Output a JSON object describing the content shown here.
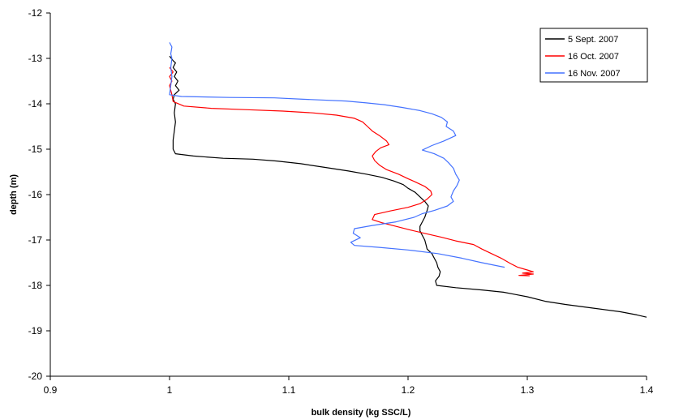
{
  "chart_data": {
    "type": "line",
    "title": "",
    "xlabel": "bulk density (kg SSC/L)",
    "ylabel": "depth (m)",
    "xlim": [
      0.9,
      1.4
    ],
    "ylim": [
      -20,
      -12
    ],
    "x_ticks": [
      0.9,
      1,
      1.1,
      1.2,
      1.3,
      1.4
    ],
    "y_ticks": [
      -12,
      -13,
      -14,
      -15,
      -16,
      -17,
      -18,
      -19,
      -20
    ],
    "grid": false,
    "legend_position": "top-right",
    "series": [
      {
        "name": "5 Sept. 2007",
        "color": "#000000",
        "points": [
          [
            1.0,
            -12.95
          ],
          [
            1.003,
            -13.05
          ],
          [
            1.005,
            -13.1
          ],
          [
            1.003,
            -13.2
          ],
          [
            1.006,
            -13.3
          ],
          [
            1.004,
            -13.4
          ],
          [
            1.007,
            -13.5
          ],
          [
            1.005,
            -13.6
          ],
          [
            1.008,
            -13.7
          ],
          [
            1.004,
            -13.8
          ],
          [
            1.003,
            -13.9
          ],
          [
            1.005,
            -14.0
          ],
          [
            1.004,
            -14.2
          ],
          [
            1.005,
            -14.4
          ],
          [
            1.004,
            -14.6
          ],
          [
            1.003,
            -14.8
          ],
          [
            1.003,
            -15.0
          ],
          [
            1.005,
            -15.1
          ],
          [
            1.02,
            -15.15
          ],
          [
            1.045,
            -15.2
          ],
          [
            1.07,
            -15.22
          ],
          [
            1.09,
            -15.26
          ],
          [
            1.11,
            -15.32
          ],
          [
            1.13,
            -15.4
          ],
          [
            1.15,
            -15.48
          ],
          [
            1.165,
            -15.55
          ],
          [
            1.178,
            -15.62
          ],
          [
            1.188,
            -15.7
          ],
          [
            1.196,
            -15.78
          ],
          [
            1.2,
            -15.86
          ],
          [
            1.206,
            -15.95
          ],
          [
            1.21,
            -16.05
          ],
          [
            1.214,
            -16.15
          ],
          [
            1.217,
            -16.25
          ],
          [
            1.216,
            -16.35
          ],
          [
            1.214,
            -16.5
          ],
          [
            1.212,
            -16.6
          ],
          [
            1.21,
            -16.7
          ],
          [
            1.21,
            -16.8
          ],
          [
            1.212,
            -16.9
          ],
          [
            1.214,
            -17.0
          ],
          [
            1.215,
            -17.1
          ],
          [
            1.216,
            -17.2
          ],
          [
            1.22,
            -17.3
          ],
          [
            1.222,
            -17.4
          ],
          [
            1.224,
            -17.5
          ],
          [
            1.225,
            -17.6
          ],
          [
            1.227,
            -17.7
          ],
          [
            1.226,
            -17.8
          ],
          [
            1.223,
            -17.9
          ],
          [
            1.224,
            -18.0
          ],
          [
            1.24,
            -18.05
          ],
          [
            1.262,
            -18.1
          ],
          [
            1.28,
            -18.15
          ],
          [
            1.29,
            -18.2
          ],
          [
            1.3,
            -18.25
          ],
          [
            1.315,
            -18.35
          ],
          [
            1.332,
            -18.42
          ],
          [
            1.355,
            -18.5
          ],
          [
            1.378,
            -18.58
          ],
          [
            1.392,
            -18.65
          ],
          [
            1.4,
            -18.7
          ]
        ]
      },
      {
        "name": "16 Oct. 2007",
        "color": "#ff0000",
        "points": [
          [
            1.0,
            -13.2
          ],
          [
            1.003,
            -13.3
          ],
          [
            1.0,
            -13.4
          ],
          [
            1.002,
            -13.5
          ],
          [
            1.0,
            -13.6
          ],
          [
            1.002,
            -13.8
          ],
          [
            1.003,
            -13.95
          ],
          [
            1.012,
            -14.05
          ],
          [
            1.035,
            -14.1
          ],
          [
            1.065,
            -14.13
          ],
          [
            1.095,
            -14.16
          ],
          [
            1.12,
            -14.2
          ],
          [
            1.14,
            -14.25
          ],
          [
            1.155,
            -14.32
          ],
          [
            1.162,
            -14.4
          ],
          [
            1.166,
            -14.5
          ],
          [
            1.17,
            -14.6
          ],
          [
            1.176,
            -14.7
          ],
          [
            1.182,
            -14.82
          ],
          [
            1.184,
            -14.9
          ],
          [
            1.177,
            -14.97
          ],
          [
            1.173,
            -15.05
          ],
          [
            1.17,
            -15.15
          ],
          [
            1.172,
            -15.25
          ],
          [
            1.176,
            -15.35
          ],
          [
            1.182,
            -15.45
          ],
          [
            1.192,
            -15.55
          ],
          [
            1.2,
            -15.65
          ],
          [
            1.206,
            -15.72
          ],
          [
            1.214,
            -15.82
          ],
          [
            1.219,
            -15.92
          ],
          [
            1.22,
            -16.0
          ],
          [
            1.216,
            -16.1
          ],
          [
            1.21,
            -16.2
          ],
          [
            1.2,
            -16.28
          ],
          [
            1.185,
            -16.36
          ],
          [
            1.172,
            -16.44
          ],
          [
            1.17,
            -16.55
          ],
          [
            1.178,
            -16.62
          ],
          [
            1.19,
            -16.7
          ],
          [
            1.202,
            -16.78
          ],
          [
            1.215,
            -16.86
          ],
          [
            1.228,
            -16.94
          ],
          [
            1.24,
            -17.02
          ],
          [
            1.255,
            -17.1
          ],
          [
            1.262,
            -17.2
          ],
          [
            1.27,
            -17.3
          ],
          [
            1.278,
            -17.4
          ],
          [
            1.286,
            -17.52
          ],
          [
            1.292,
            -17.6
          ],
          [
            1.3,
            -17.66
          ],
          [
            1.305,
            -17.7
          ],
          [
            1.296,
            -17.73
          ],
          [
            1.305,
            -17.75
          ],
          [
            1.293,
            -17.78
          ],
          [
            1.302,
            -17.79
          ]
        ]
      },
      {
        "name": "16 Nov. 2007",
        "color": "#4472ff",
        "points": [
          [
            1.0,
            -12.65
          ],
          [
            1.002,
            -12.75
          ],
          [
            1.001,
            -12.9
          ],
          [
            1.002,
            -13.0
          ],
          [
            1.001,
            -13.2
          ],
          [
            1.002,
            -13.4
          ],
          [
            1.001,
            -13.6
          ],
          [
            1.0,
            -13.8
          ],
          [
            1.01,
            -13.84
          ],
          [
            1.05,
            -13.86
          ],
          [
            1.088,
            -13.87
          ],
          [
            1.112,
            -13.9
          ],
          [
            1.148,
            -13.94
          ],
          [
            1.165,
            -13.98
          ],
          [
            1.18,
            -14.02
          ],
          [
            1.195,
            -14.08
          ],
          [
            1.21,
            -14.15
          ],
          [
            1.22,
            -14.22
          ],
          [
            1.228,
            -14.3
          ],
          [
            1.233,
            -14.4
          ],
          [
            1.232,
            -14.5
          ],
          [
            1.238,
            -14.6
          ],
          [
            1.24,
            -14.7
          ],
          [
            1.23,
            -14.82
          ],
          [
            1.22,
            -14.92
          ],
          [
            1.212,
            -15.02
          ],
          [
            1.222,
            -15.1
          ],
          [
            1.23,
            -15.2
          ],
          [
            1.234,
            -15.3
          ],
          [
            1.238,
            -15.42
          ],
          [
            1.24,
            -15.55
          ],
          [
            1.243,
            -15.68
          ],
          [
            1.241,
            -15.8
          ],
          [
            1.238,
            -15.92
          ],
          [
            1.236,
            -16.05
          ],
          [
            1.238,
            -16.15
          ],
          [
            1.233,
            -16.25
          ],
          [
            1.222,
            -16.35
          ],
          [
            1.212,
            -16.42
          ],
          [
            1.205,
            -16.5
          ],
          [
            1.19,
            -16.6
          ],
          [
            1.17,
            -16.68
          ],
          [
            1.155,
            -16.75
          ],
          [
            1.154,
            -16.85
          ],
          [
            1.16,
            -16.95
          ],
          [
            1.152,
            -17.05
          ],
          [
            1.155,
            -17.12
          ],
          [
            1.175,
            -17.16
          ],
          [
            1.2,
            -17.22
          ],
          [
            1.225,
            -17.3
          ],
          [
            1.245,
            -17.4
          ],
          [
            1.262,
            -17.5
          ],
          [
            1.275,
            -17.57
          ],
          [
            1.281,
            -17.6
          ]
        ]
      }
    ]
  }
}
